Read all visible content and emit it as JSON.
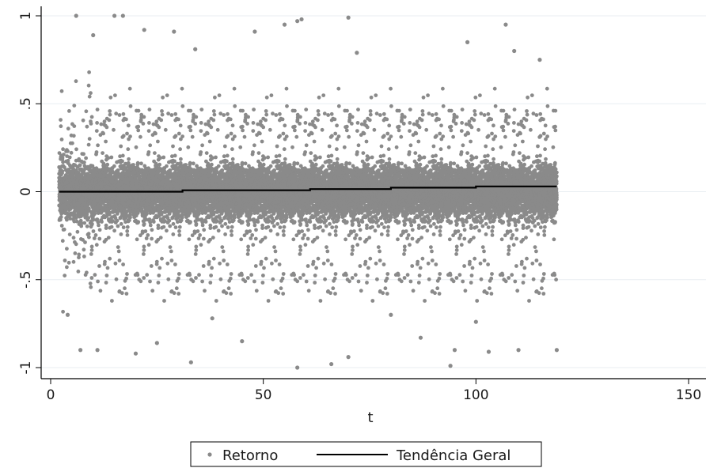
{
  "chart_data": {
    "type": "scatter",
    "title": "",
    "xlabel": "t",
    "ylabel": "",
    "xlim": [
      0,
      152
    ],
    "ylim": [
      -1.04,
      1.05
    ],
    "x_ticks": [
      0,
      50,
      100,
      150
    ],
    "x_tick_labels": [
      "0",
      "50",
      "100",
      "150"
    ],
    "y_ticks": [
      -1,
      -0.5,
      0,
      0.5,
      1
    ],
    "y_tick_labels": [
      "-1",
      "-.5",
      "0",
      ".5",
      "1"
    ],
    "grid": true,
    "legend_position": "bottom",
    "series": [
      {
        "name": "Retorno",
        "kind": "scatter",
        "color": "#8a8a8a",
        "x_range": [
          2,
          119
        ],
        "core_spread": 0.24,
        "extreme_points": [
          [
            6,
            1.0
          ],
          [
            15,
            1.0
          ],
          [
            17,
            1.0
          ],
          [
            70,
            0.99
          ],
          [
            58,
            0.97
          ],
          [
            59,
            0.98
          ],
          [
            10,
            0.89
          ],
          [
            22,
            0.92
          ],
          [
            29,
            0.91
          ],
          [
            48,
            0.91
          ],
          [
            55,
            0.95
          ],
          [
            98,
            0.85
          ],
          [
            107,
            0.95
          ],
          [
            109,
            0.8
          ],
          [
            115,
            0.75
          ],
          [
            34,
            0.81
          ],
          [
            72,
            0.79
          ],
          [
            7,
            -0.9
          ],
          [
            11,
            -0.9
          ],
          [
            20,
            -0.92
          ],
          [
            33,
            -0.97
          ],
          [
            45,
            -0.85
          ],
          [
            58,
            -1.0
          ],
          [
            66,
            -0.98
          ],
          [
            70,
            -0.94
          ],
          [
            94,
            -0.99
          ],
          [
            95,
            -0.9
          ],
          [
            103,
            -0.91
          ],
          [
            110,
            -0.9
          ],
          [
            119,
            -0.9
          ],
          [
            25,
            -0.86
          ],
          [
            87,
            -0.83
          ],
          [
            4,
            -0.7
          ],
          [
            38,
            -0.72
          ],
          [
            80,
            -0.7
          ],
          [
            100,
            -0.74
          ]
        ]
      },
      {
        "name": "Tendência Geral",
        "kind": "step-line",
        "color": "#000000",
        "segments": [
          {
            "x": [
              2,
              31
            ],
            "y": 0.0
          },
          {
            "x": [
              31,
              61
            ],
            "y": 0.008
          },
          {
            "x": [
              61,
              80
            ],
            "y": 0.015
          },
          {
            "x": [
              80,
              100
            ],
            "y": 0.023
          },
          {
            "x": [
              100,
              119
            ],
            "y": 0.03
          }
        ]
      }
    ]
  }
}
